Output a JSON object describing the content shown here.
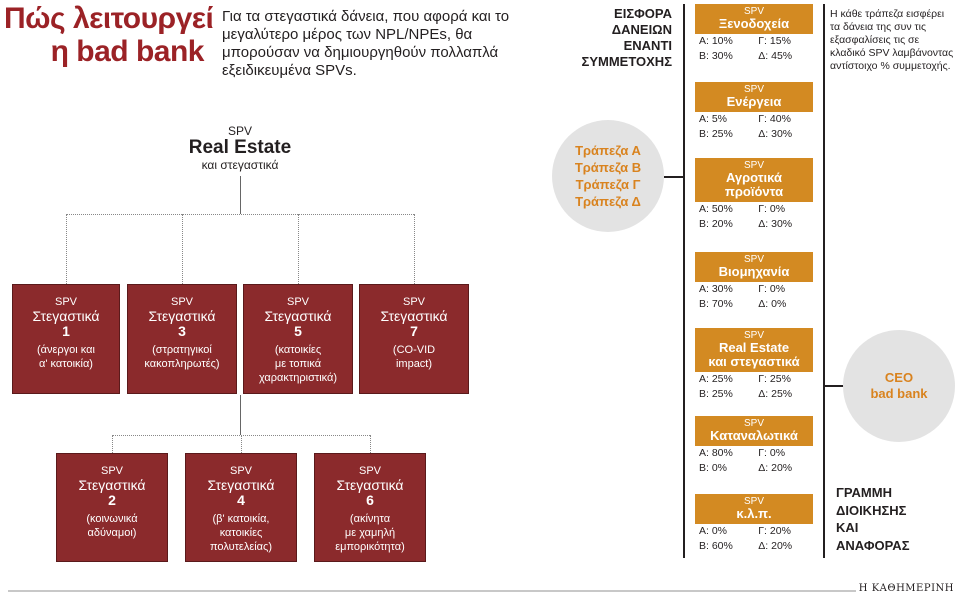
{
  "title": {
    "line1": "Πώς λειτουργεί",
    "line2": "η bad bank"
  },
  "intro": "Για τα στεγαστικά δάνεια, που αφορά και το μεγαλύτερο μέρος των NPL/NPEs, θα μπορούσαν να δημιουργηθούν πολλαπλά εξειδικευμένα SPVs.",
  "root": {
    "kicker": "SPV",
    "title": "Real Estate",
    "subtitle": "και στεγαστικά"
  },
  "spvs": [
    {
      "kicker": "SPV",
      "name": "Στεγαστικά",
      "num": "1",
      "desc1": "(άνεργοι και",
      "desc2": "α' κατοικία)",
      "desc3": ""
    },
    {
      "kicker": "SPV",
      "name": "Στεγαστικά",
      "num": "3",
      "desc1": "(στρατηγικοί",
      "desc2": "κακοπληρωτές)",
      "desc3": ""
    },
    {
      "kicker": "SPV",
      "name": "Στεγαστικά",
      "num": "5",
      "desc1": "(κατοικίες",
      "desc2": "με τοπικά",
      "desc3": "χαρακτηριστικά)"
    },
    {
      "kicker": "SPV",
      "name": "Στεγαστικά",
      "num": "7",
      "desc1": "(CO-VID",
      "desc2": "impact)",
      "desc3": ""
    },
    {
      "kicker": "SPV",
      "name": "Στεγαστικά",
      "num": "2",
      "desc1": "(κοινωνικά",
      "desc2": "αδύναμοι)",
      "desc3": ""
    },
    {
      "kicker": "SPV",
      "name": "Στεγαστικά",
      "num": "4",
      "desc1": "(β' κατοικία,",
      "desc2": "κατοικίες",
      "desc3": "πολυτελείας)"
    },
    {
      "kicker": "SPV",
      "name": "Στεγαστικά",
      "num": "6",
      "desc1": "(ακίνητα",
      "desc2": "με χαμηλή",
      "desc3": "εμπορικότητα)"
    }
  ],
  "contribution_label": [
    "ΕΙΣΦΟΡΑ",
    "ΔΑΝΕΙΩΝ",
    "ΕΝΑΝΤΙ",
    "ΣΥΜΜΕΤΟΧΗΣ"
  ],
  "banks": [
    "Τράπεζα Α",
    "Τράπεζα Β",
    "Τράπεζα Γ",
    "Τράπεζα Δ"
  ],
  "note": "Η κάθε τράπεζα εισφέρει τα δάνεια της συν τις εξασφαλίσεις τις σε κλαδικό SPV λαμβάνοντας αντίστοιχο % συμμετοχής.",
  "sectors": [
    {
      "kicker": "SPV",
      "name1": "Ξενοδοχεία",
      "name2": "",
      "a": "Α: 10%",
      "g": "Γ: 15%",
      "b": "Β: 30%",
      "d": "Δ: 45%"
    },
    {
      "kicker": "SPV",
      "name1": "Ενέργεια",
      "name2": "",
      "a": "Α:   5%",
      "g": "Γ: 40%",
      "b": "Β: 25%",
      "d": "Δ: 30%"
    },
    {
      "kicker": "SPV",
      "name1": "Αγροτικά",
      "name2": "προϊόντα",
      "a": "Α: 50%",
      "g": "Γ:   0%",
      "b": "Β: 20%",
      "d": "Δ: 30%"
    },
    {
      "kicker": "SPV",
      "name1": "Βιομηχανία",
      "name2": "",
      "a": "Α: 30%",
      "g": "Γ:   0%",
      "b": "Β: 70%",
      "d": "Δ:   0%"
    },
    {
      "kicker": "SPV",
      "name1": "Real Estate",
      "name2": "και στεγαστικά",
      "a": "Α: 25%",
      "g": "Γ: 25%",
      "b": "Β: 25%",
      "d": "Δ: 25%"
    },
    {
      "kicker": "SPV",
      "name1": "Καταναλωτικά",
      "name2": "",
      "a": "Α: 80%",
      "g": "Γ:   0%",
      "b": "Β:   0%",
      "d": "Δ: 20%"
    },
    {
      "kicker": "SPV",
      "name1": "κ.λ.π.",
      "name2": "",
      "a": "Α:   0%",
      "g": "Γ: 20%",
      "b": "Β: 60%",
      "d": "Δ: 20%"
    }
  ],
  "ceo": [
    "CEO",
    "bad bank"
  ],
  "management_label": [
    "ΓΡΑΜΜΗ",
    "ΔΙΟΙΚΗΣΗΣ",
    "ΚΑΙ",
    "ΑΝΑΦΟΡΑΣ"
  ],
  "credit": "Η ΚΑΘΗΜΕΡΙΝΗ",
  "colors": {
    "title": "#9b2226",
    "spv_box": "#8b2a2c",
    "sector_box": "#d38a22",
    "circle_text": "#d9831f",
    "circle_bg": "#e3e3e3"
  }
}
